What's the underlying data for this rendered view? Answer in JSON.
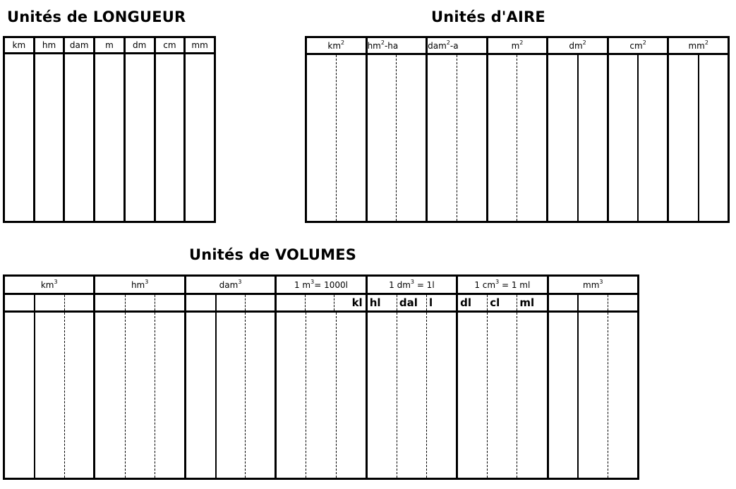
{
  "longueur": {
    "title": "Unités de LONGUEUR",
    "columns": [
      "km",
      "hm",
      "dam",
      "m",
      "dm",
      "cm",
      "mm"
    ]
  },
  "aire": {
    "title": "Unités d'AIRE",
    "columns": [
      {
        "unit": "km",
        "sup": "2",
        "post": "",
        "divider": "dashed"
      },
      {
        "unit": "hm",
        "sup": "2",
        "post": "-ha",
        "divider": "dashed"
      },
      {
        "unit": "dam",
        "sup": "2",
        "post": "-a",
        "divider": "dashed"
      },
      {
        "unit": "m",
        "sup": "2",
        "post": "",
        "divider": "dashed"
      },
      {
        "unit": "dm",
        "sup": "2",
        "post": "",
        "divider": "solid"
      },
      {
        "unit": "cm",
        "sup": "2",
        "post": "",
        "divider": "solid"
      },
      {
        "unit": "mm",
        "sup": "2",
        "post": "",
        "divider": "solid"
      }
    ]
  },
  "volumes": {
    "title": "Unités de VOLUMES",
    "groups": [
      {
        "unit": "km",
        "sup": "3",
        "post": "",
        "dividers": [
          "solid",
          "dashed"
        ],
        "subs": [
          "",
          "",
          ""
        ]
      },
      {
        "unit": "hm",
        "sup": "3",
        "post": "",
        "dividers": [
          "dashed",
          "dashed"
        ],
        "subs": [
          "",
          "",
          ""
        ]
      },
      {
        "unit": "dam",
        "sup": "3",
        "post": "",
        "dividers": [
          "solid",
          "dashed"
        ],
        "subs": [
          "",
          "",
          ""
        ]
      },
      {
        "unit": "1 m",
        "sup": "3",
        "post": "= 1000l",
        "dividers": [
          "dashed",
          "dashed"
        ],
        "subs": [
          "",
          "",
          "kl"
        ]
      },
      {
        "unit": "1 dm",
        "sup": "3",
        "post": " = 1l",
        "dividers": [
          "dashed",
          "dashed"
        ],
        "subs": [
          "hl",
          "dal",
          "l"
        ]
      },
      {
        "unit": "1 cm",
        "sup": "3",
        "post": " = 1 ml",
        "dividers": [
          "dashed",
          "dashed"
        ],
        "subs": [
          "dl",
          "cl",
          "ml"
        ]
      },
      {
        "unit": "mm",
        "sup": "3",
        "post": "",
        "dividers": [
          "solid",
          "dashed"
        ],
        "subs": [
          "",
          "",
          ""
        ]
      }
    ]
  }
}
